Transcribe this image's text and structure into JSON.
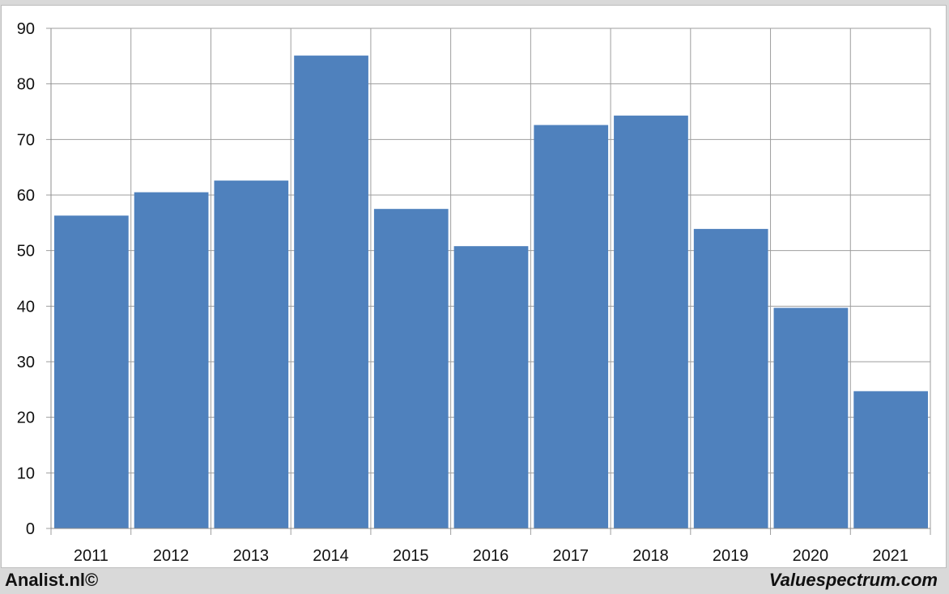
{
  "chart_data": {
    "type": "bar",
    "categories": [
      "2011",
      "2012",
      "2013",
      "2014",
      "2015",
      "2016",
      "2017",
      "2018",
      "2019",
      "2020",
      "2021"
    ],
    "values": [
      56.3,
      60.5,
      62.6,
      85.1,
      57.5,
      50.8,
      72.6,
      74.3,
      53.9,
      39.7,
      24.7
    ],
    "ylim": [
      0,
      90
    ],
    "yticks": [
      "0",
      "10",
      "20",
      "30",
      "40",
      "50",
      "60",
      "70",
      "80",
      "90"
    ],
    "grid": true,
    "bar_color": "#4f81bd",
    "grid_color": "#9e9e9e"
  },
  "footer": {
    "left_text": "Analist.nl©",
    "right_text": "Valuespectrum.com"
  }
}
